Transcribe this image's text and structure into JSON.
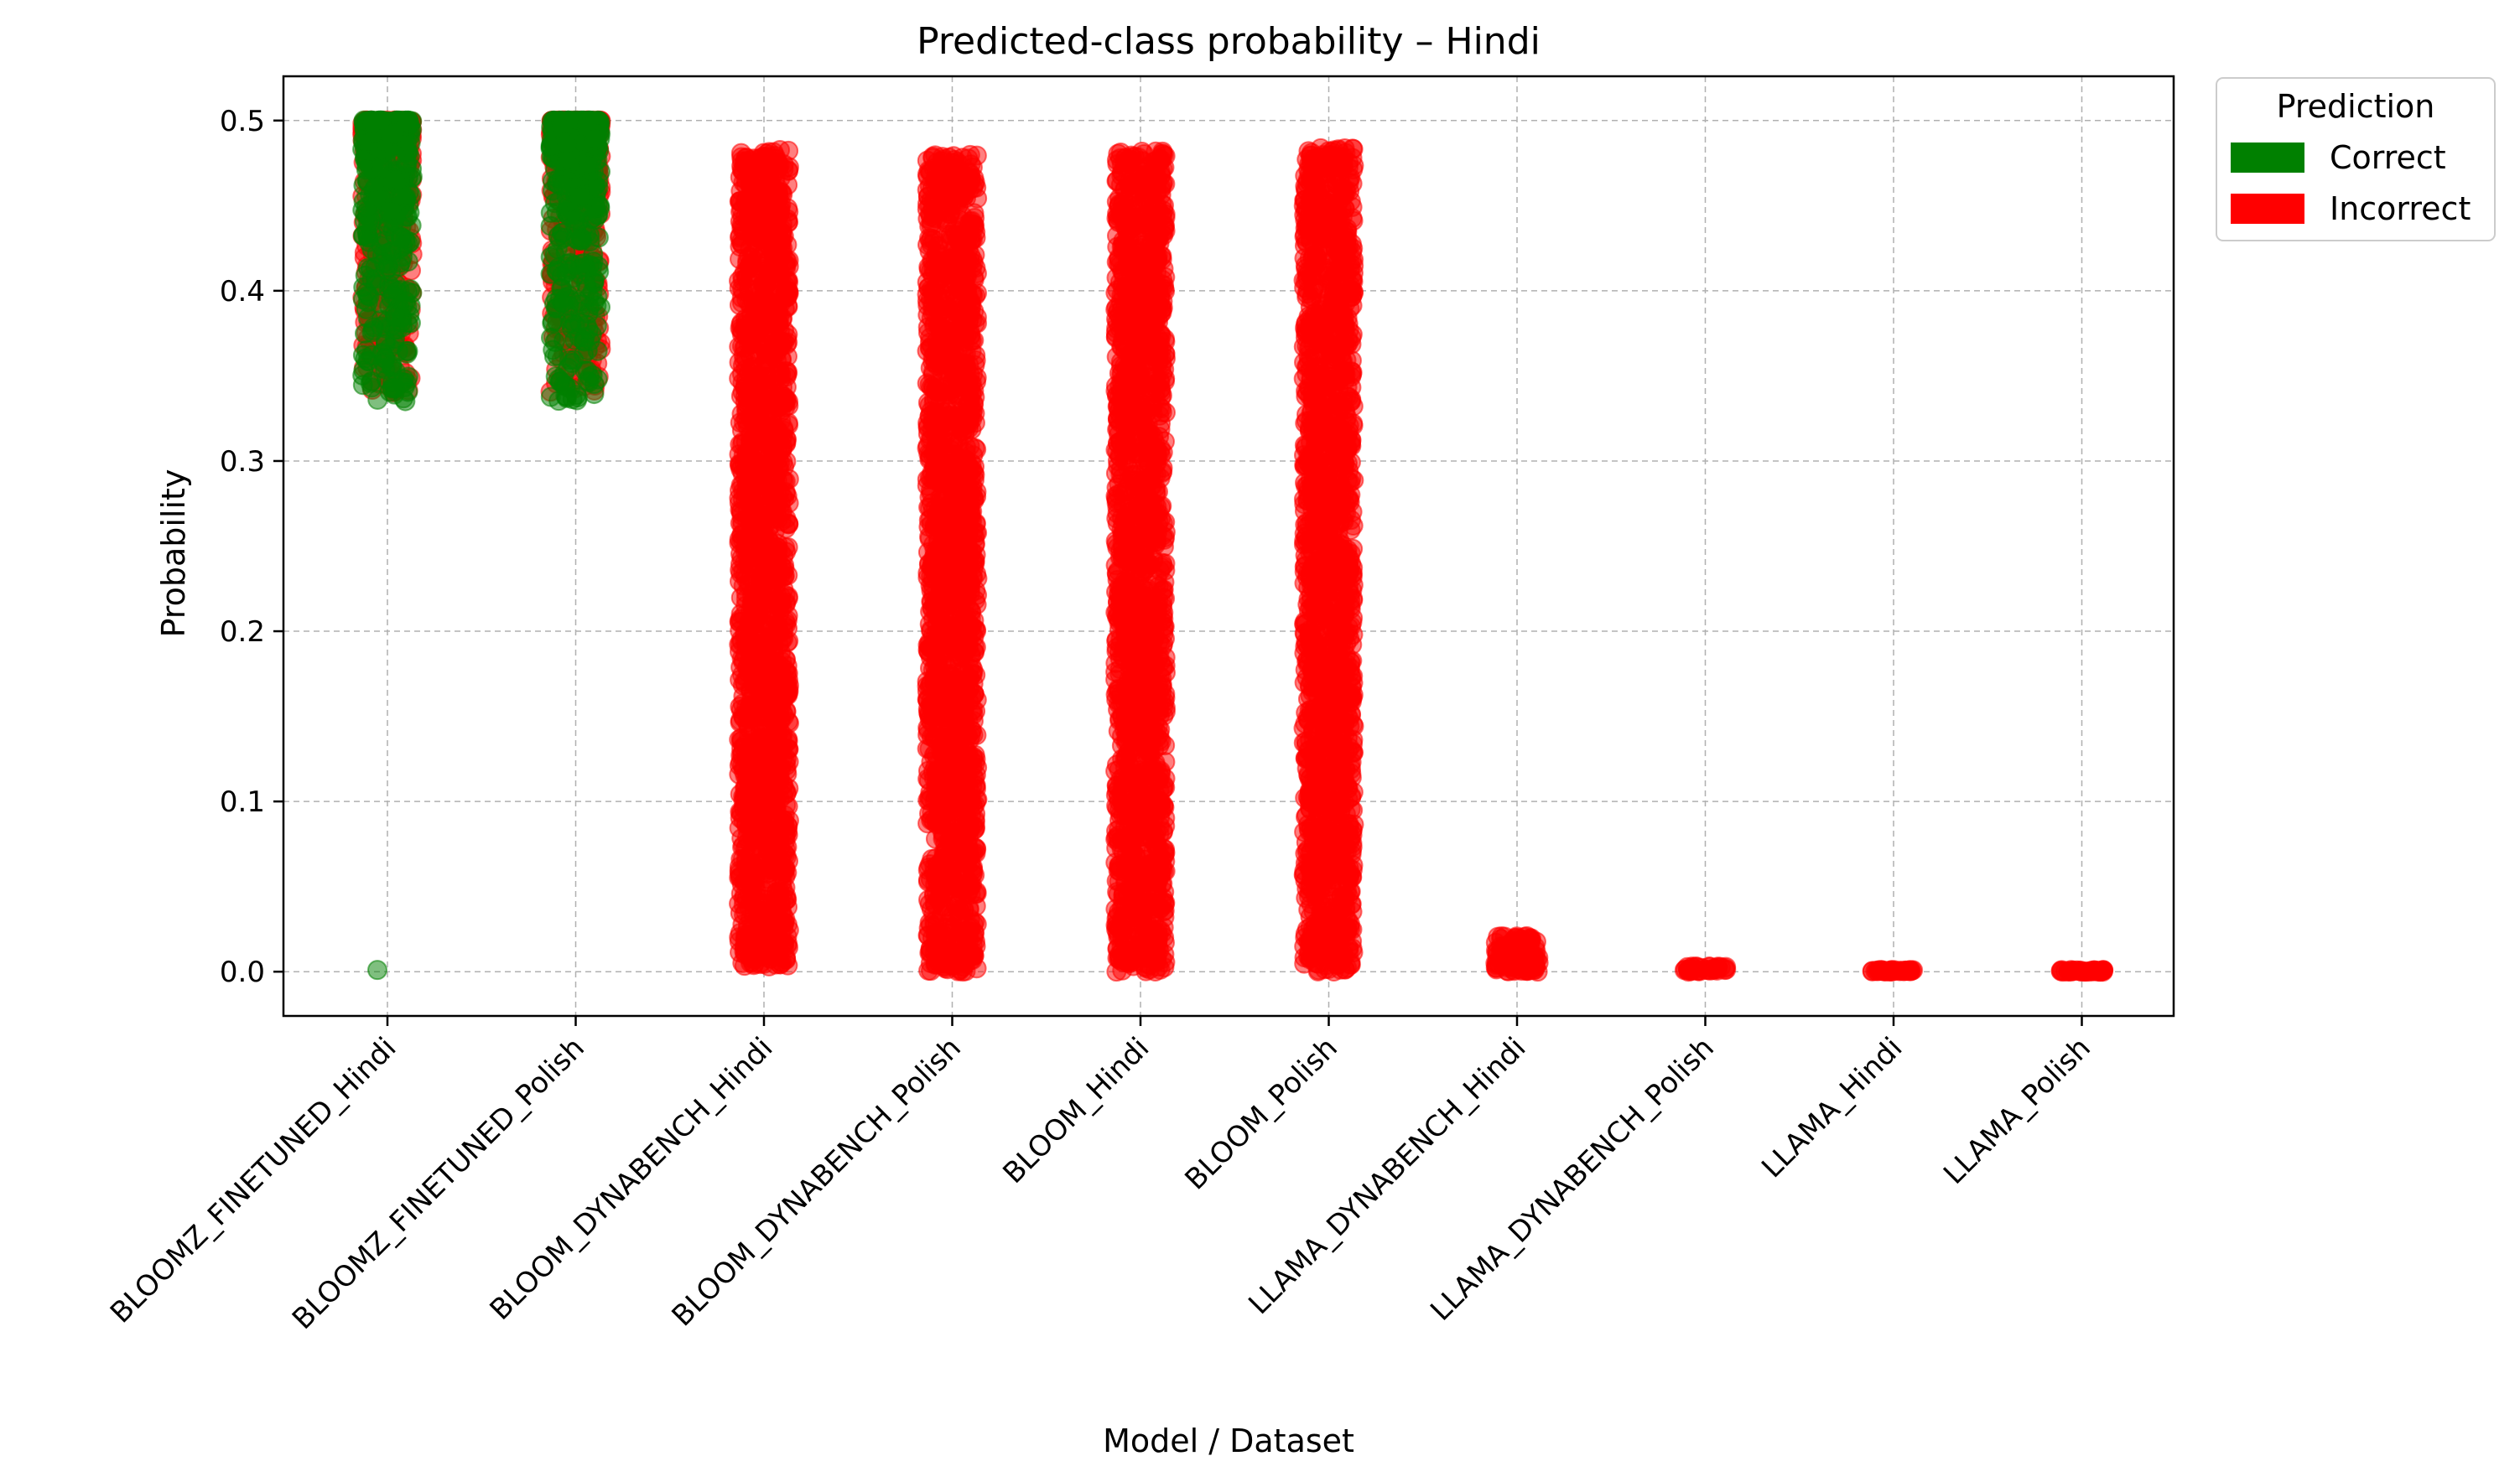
{
  "chart_data": {
    "type": "scatter",
    "title": "Predicted-class probability – Hindi",
    "xlabel": "Model / Dataset",
    "ylabel": "Probability",
    "ylim": [
      -0.026,
      0.526
    ],
    "yticks": [
      0.0,
      0.1,
      0.2,
      0.3,
      0.4,
      0.5
    ],
    "ytick_labels": [
      "0.0",
      "0.1",
      "0.2",
      "0.3",
      "0.4",
      "0.5"
    ],
    "grid": true,
    "categories": [
      "BLOOMZ_FINETUNED_Hindi",
      "BLOOMZ_FINETUNED_Polish",
      "BLOOM_DYNABENCH_Hindi",
      "BLOOM_DYNABENCH_Polish",
      "BLOOM_Hindi",
      "BLOOM_Polish",
      "LLAMA_DYNABENCH_Hindi",
      "LLAMA_DYNABENCH_Polish",
      "LLAMA_Hindi",
      "LLAMA_Polish"
    ],
    "legend": {
      "title": "Prediction",
      "position": "outside upper right",
      "entries": [
        {
          "label": "Correct",
          "color": "#008000"
        },
        {
          "label": "Incorrect",
          "color": "#ff0000"
        }
      ]
    },
    "series": [
      {
        "name": "Correct",
        "color": "#008000",
        "ranges": [
          {
            "category": "BLOOMZ_FINETUNED_Hindi",
            "min": 0.335,
            "max": 0.5
          },
          {
            "category": "BLOOMZ_FINETUNED_Polish",
            "min": 0.335,
            "max": 0.5
          }
        ],
        "outliers": [
          {
            "category": "BLOOMZ_FINETUNED_Hindi",
            "y": 0.001
          }
        ]
      },
      {
        "name": "Incorrect",
        "color": "#ff0000",
        "ranges": [
          {
            "category": "BLOOMZ_FINETUNED_Hindi",
            "min": 0.34,
            "max": 0.5
          },
          {
            "category": "BLOOMZ_FINETUNED_Polish",
            "min": 0.34,
            "max": 0.5
          },
          {
            "category": "BLOOM_DYNABENCH_Hindi",
            "min": 0.003,
            "max": 0.483
          },
          {
            "category": "BLOOM_DYNABENCH_Polish",
            "min": 0.0,
            "max": 0.48
          },
          {
            "category": "BLOOM_Hindi",
            "min": 0.0,
            "max": 0.482
          },
          {
            "category": "BLOOM_Polish",
            "min": 0.0,
            "max": 0.484
          },
          {
            "category": "LLAMA_DYNABENCH_Hindi",
            "min": 0.0,
            "max": 0.021
          },
          {
            "category": "LLAMA_DYNABENCH_Polish",
            "min": 0.0,
            "max": 0.003
          },
          {
            "category": "LLAMA_Hindi",
            "min": 0.0,
            "max": 0.001
          },
          {
            "category": "LLAMA_Polish",
            "min": 0.0,
            "max": 0.001
          }
        ]
      }
    ]
  }
}
